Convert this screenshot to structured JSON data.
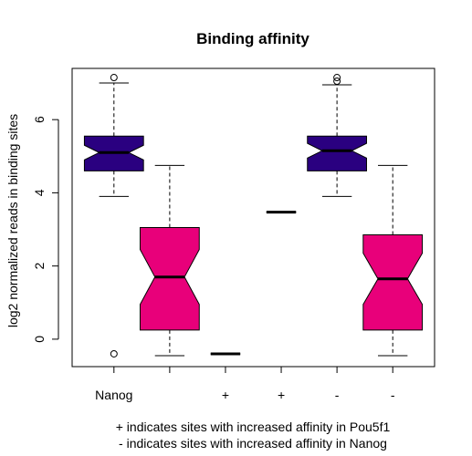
{
  "chart_data": {
    "type": "box",
    "title": "Binding affinity",
    "ylabel": "log2 normalized reads in binding sites",
    "xlabel": "",
    "ylim": [
      -0.75,
      7.4
    ],
    "yticks": [
      0,
      2,
      4,
      6
    ],
    "notched": true,
    "grid": false,
    "legend": "none",
    "categories": [
      "Nanog",
      "",
      "+",
      "+",
      "-",
      "-"
    ],
    "boxes": [
      {
        "label": "Nanog",
        "color": "#2a0080",
        "whisker_low": 3.9,
        "q1": 4.6,
        "median": 5.1,
        "q3": 5.55,
        "whisker_high": 7.0,
        "notch_low": 4.9,
        "notch_high": 5.3,
        "outliers": [
          7.15,
          -0.4
        ]
      },
      {
        "label": "",
        "color": "#e8007a",
        "whisker_low": -0.45,
        "q1": 0.25,
        "median": 1.7,
        "q3": 3.05,
        "whisker_high": 4.75,
        "notch_low": 0.95,
        "notch_high": 2.45,
        "outliers": []
      },
      {
        "label": "+",
        "color": "#e8007a",
        "whisker_low": -0.4,
        "q1": -0.4,
        "median": -0.4,
        "q3": -0.4,
        "whisker_high": -0.4,
        "notch_low": -0.4,
        "notch_high": -0.4,
        "outliers": []
      },
      {
        "label": "+",
        "color": "#2a0080",
        "whisker_low": 3.47,
        "q1": 3.47,
        "median": 3.47,
        "q3": 3.47,
        "whisker_high": 3.47,
        "notch_low": 3.47,
        "notch_high": 3.47,
        "outliers": []
      },
      {
        "label": "-",
        "color": "#2a0080",
        "whisker_low": 3.9,
        "q1": 4.6,
        "median": 5.15,
        "q3": 5.55,
        "whisker_high": 6.95,
        "notch_low": 4.95,
        "notch_high": 5.35,
        "outliers": [
          7.05,
          7.15
        ]
      },
      {
        "label": "-",
        "color": "#e8007a",
        "whisker_low": -0.45,
        "q1": 0.25,
        "median": 1.65,
        "q3": 2.85,
        "whisker_high": 4.75,
        "notch_low": 0.95,
        "notch_high": 2.35,
        "outliers": []
      }
    ],
    "annotations": [
      "+ indicates sites with increased affinity in Pou5f1",
      "- indicates sites with increased affinity in Nanog"
    ]
  }
}
